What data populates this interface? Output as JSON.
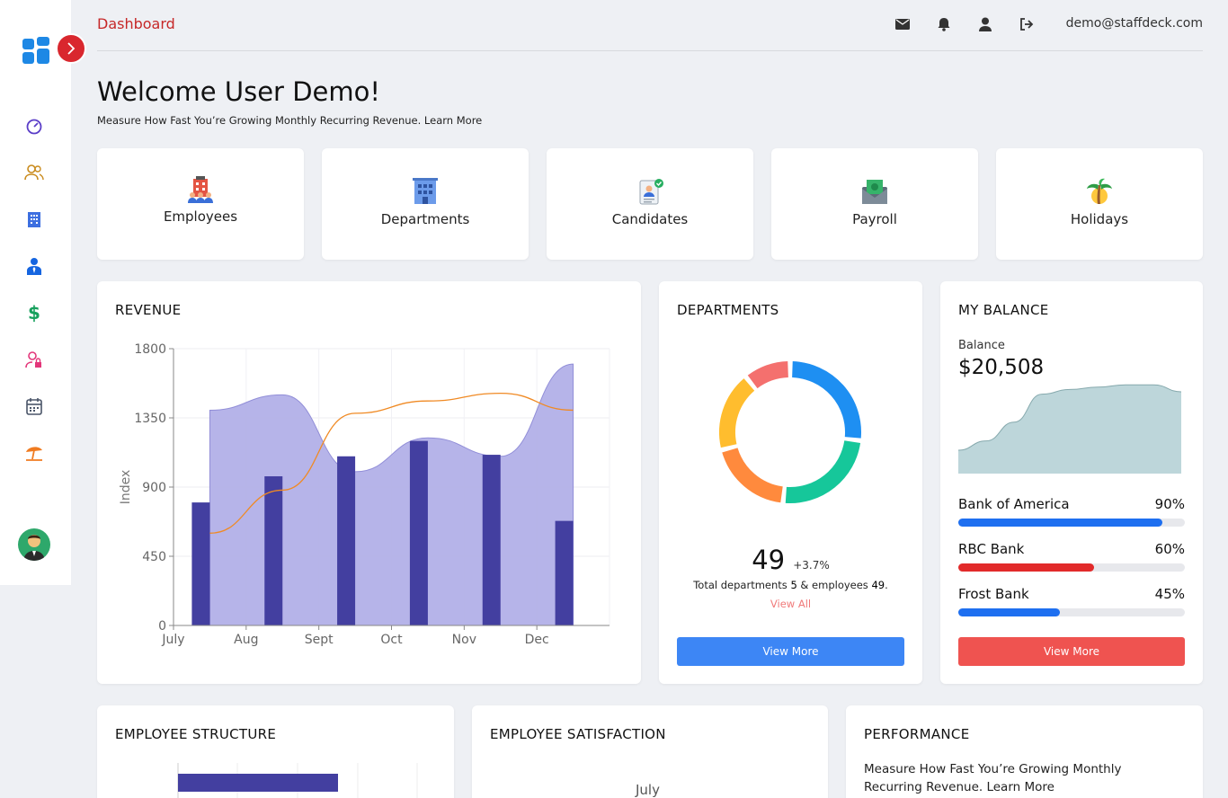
{
  "header": {
    "breadcrumb": "Dashboard",
    "user_email": "demo@staffdeck.com",
    "icons": [
      "mail-icon",
      "bell-icon",
      "user-icon",
      "logout-icon"
    ]
  },
  "sidebar": {
    "icons": [
      "dashboard-icon",
      "users-icon",
      "building-icon",
      "employee-icon",
      "dollar-icon",
      "user-lock-icon",
      "calendar-icon",
      "beach-umbrella-icon"
    ]
  },
  "welcome": {
    "title": "Welcome User Demo!",
    "subtitle": "Measure How Fast You’re Growing Monthly Recurring Revenue. Learn More"
  },
  "tiles": [
    {
      "label": "Employees",
      "icon": "employees-icon"
    },
    {
      "label": "Departments",
      "icon": "departments-icon"
    },
    {
      "label": "Candidates",
      "icon": "candidates-icon"
    },
    {
      "label": "Payroll",
      "icon": "payroll-icon"
    },
    {
      "label": "Holidays",
      "icon": "holidays-icon"
    }
  ],
  "revenue": {
    "title": "REVENUE",
    "chart_data": {
      "type": "bar",
      "categories": [
        "July",
        "Aug",
        "Sept",
        "Oct",
        "Nov",
        "Dec"
      ],
      "ylabel": "Index",
      "ylim": [
        0,
        1800
      ],
      "yticks": [
        "0",
        "450",
        "900",
        "1350",
        "1800"
      ],
      "series": [
        {
          "type": "bar",
          "values": [
            800,
            970,
            1100,
            1200,
            1110,
            680
          ]
        },
        {
          "type": "area",
          "values": [
            1400,
            1500,
            1000,
            1220,
            1100,
            1700
          ]
        },
        {
          "type": "line",
          "values": [
            600,
            880,
            1380,
            1460,
            1510,
            1400
          ]
        }
      ],
      "grid": true,
      "colors": {
        "bar": "#433fa0",
        "area": "#b3b1e8",
        "line": "#f08a24"
      }
    }
  },
  "departments": {
    "title": "DEPARTMENTS",
    "total": "49",
    "change": "+3.7%",
    "desc_prefix": "Total departments ",
    "dept_count": "5",
    "desc_mid": " & employees ",
    "emp_count": "49",
    "desc_suffix": ".",
    "view_all": "View All",
    "button": "View More",
    "chart_data": {
      "type": "pie",
      "values": [
        25,
        23,
        18,
        17,
        10
      ],
      "colors": [
        "#1e8ff2",
        "#16c79a",
        "#ff8a3d",
        "#ffbd2e",
        "#f4706e"
      ]
    }
  },
  "balance": {
    "title": "MY BALANCE",
    "label": "Balance",
    "amount": "$20,508",
    "chart_data": {
      "type": "area",
      "values": [
        10,
        14,
        22,
        34,
        36,
        37,
        38,
        38,
        35
      ],
      "color": "#bdd6da"
    },
    "banks": [
      {
        "name": "Bank of America",
        "percent": "90%",
        "value": 0.9,
        "color": "#1e6ff0"
      },
      {
        "name": "RBC Bank",
        "percent": "60%",
        "value": 0.6,
        "color": "#e22a2a"
      },
      {
        "name": "Frost Bank",
        "percent": "45%",
        "value": 0.45,
        "color": "#1e6ff0"
      }
    ],
    "button": "View More"
  },
  "structure": {
    "title": "EMPLOYEE STRUCTURE"
  },
  "satisfaction": {
    "title": "EMPLOYEE SATISFACTION",
    "month": "July"
  },
  "performance": {
    "title": "PERFORMANCE",
    "text": "Measure How Fast You’re Growing Monthly Recurring Revenue. Learn More"
  }
}
